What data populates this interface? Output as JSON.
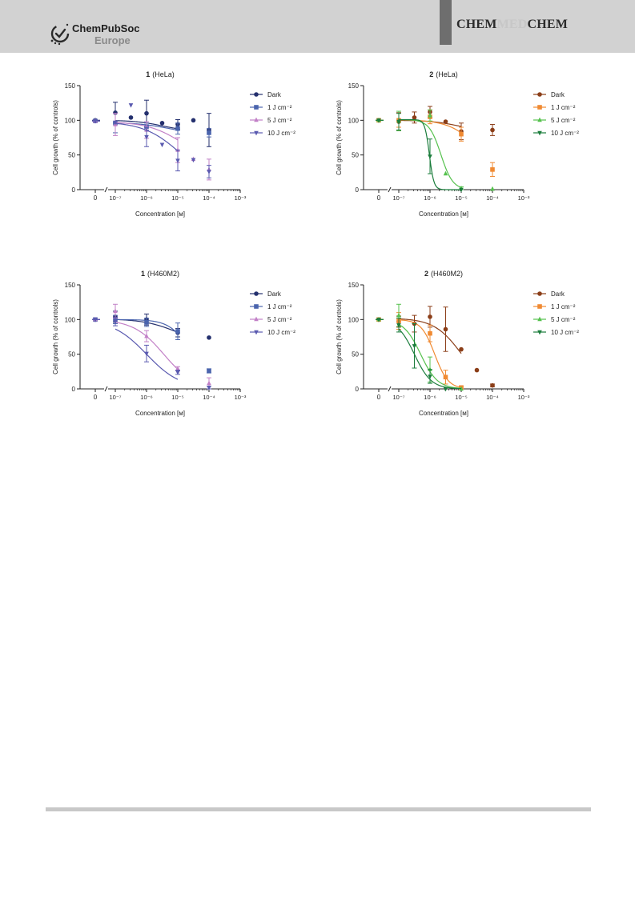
{
  "header": {
    "publisher_line1": "ChemPubSoc",
    "publisher_line2": "Europe",
    "journal_part1": "CHEM",
    "journal_part2": "MED",
    "journal_part3": "CHEM",
    "background": "#d2d2d2"
  },
  "chart_data": [
    {
      "type": "line",
      "compound": "1",
      "cell_line": "(HeLa)",
      "xlabel": "Concentration [м]",
      "ylabel": "Cell growth (% of controls)",
      "x_scale": "log",
      "xlim": [
        1e-07,
        0.001
      ],
      "x_zero_label": "0",
      "x_ticks": [
        "10⁻⁷",
        "10⁻⁶",
        "10⁻⁵",
        "10⁻⁴",
        "10⁻³"
      ],
      "ylim": [
        0,
        150
      ],
      "y_ticks": [
        0,
        50,
        100,
        150
      ],
      "grid": false,
      "legend": "right",
      "series": [
        {
          "name": "Dark",
          "color": "#24306e",
          "marker": "circle",
          "zero": {
            "y": 100,
            "err": 1
          },
          "points": [
            {
              "x": 1e-07,
              "y": 111,
              "err": 15
            },
            {
              "x": 3.16e-07,
              "y": 104,
              "err": 0
            },
            {
              "x": 1e-06,
              "y": 110,
              "err": 19
            },
            {
              "x": 3.16e-06,
              "y": 96,
              "err": 0
            },
            {
              "x": 1e-05,
              "y": 94,
              "err": 7
            },
            {
              "x": 3.16e-05,
              "y": 100,
              "err": 0
            },
            {
              "x": 0.0001,
              "y": 86,
              "err": 24
            }
          ],
          "fit": {
            "top": 100,
            "bottom": 84,
            "logEC50": -5.5,
            "slope": 1
          }
        },
        {
          "name": "1 J cm⁻²",
          "color": "#4a64ad",
          "marker": "square",
          "zero": {
            "y": 99,
            "err": 1
          },
          "points": [
            {
              "x": 1e-07,
              "y": 96,
              "err": 14
            },
            {
              "x": 1e-06,
              "y": 91,
              "err": 5
            },
            {
              "x": 1e-05,
              "y": 88,
              "err": 8
            },
            {
              "x": 0.0001,
              "y": 82,
              "err": 6
            }
          ],
          "fit": {
            "top": 97,
            "bottom": 78,
            "logEC50": -5.2,
            "slope": 0.8
          }
        },
        {
          "name": "5 J cm⁻²",
          "color": "#c280c7",
          "marker": "triangle-up",
          "zero": {
            "y": 99,
            "err": 1
          },
          "points": [
            {
              "x": 1e-07,
              "y": 94,
              "err": 16
            },
            {
              "x": 1e-06,
              "y": 86,
              "err": 12
            },
            {
              "x": 1e-05,
              "y": 57,
              "err": 18
            },
            {
              "x": 3.16e-05,
              "y": 44,
              "err": 0
            },
            {
              "x": 0.0001,
              "y": 29,
              "err": 15
            }
          ],
          "fit": {
            "top": 98,
            "bottom": 40,
            "logEC50": -4.9,
            "slope": 0.8
          }
        },
        {
          "name": "10 J cm⁻²",
          "color": "#5a5ab0",
          "marker": "triangle-down",
          "zero": {
            "y": 99,
            "err": 1
          },
          "points": [
            {
              "x": 1e-07,
              "y": 97,
              "err": 0
            },
            {
              "x": 3.16e-07,
              "y": 122,
              "err": 0
            },
            {
              "x": 1e-06,
              "y": 76,
              "err": 14
            },
            {
              "x": 3.16e-06,
              "y": 65,
              "err": 0
            },
            {
              "x": 1e-05,
              "y": 42,
              "err": 15
            },
            {
              "x": 3.16e-05,
              "y": 43,
              "err": 0
            },
            {
              "x": 0.0001,
              "y": 26,
              "err": 9
            }
          ],
          "fit": {
            "top": 98,
            "bottom": 10,
            "logEC50": -4.95,
            "slope": 0.75
          }
        }
      ]
    },
    {
      "type": "line",
      "compound": "2",
      "cell_line": "(HeLa)",
      "xlabel": "Concentration [м]",
      "ylabel": "Cell growth (% of controls)",
      "x_scale": "log",
      "xlim": [
        1e-07,
        0.001
      ],
      "x_zero_label": "0",
      "x_ticks": [
        "10⁻⁷",
        "10⁻⁶",
        "10⁻⁵",
        "10⁻⁴",
        "10⁻³"
      ],
      "ylim": [
        0,
        150
      ],
      "y_ticks": [
        0,
        50,
        100,
        150
      ],
      "grid": false,
      "legend": "right",
      "series": [
        {
          "name": "Dark",
          "color": "#8b3e18",
          "marker": "circle",
          "zero": {
            "y": 100,
            "err": 1
          },
          "points": [
            {
              "x": 1e-07,
              "y": 98,
              "err": 13
            },
            {
              "x": 3.16e-07,
              "y": 104,
              "err": 8
            },
            {
              "x": 1e-06,
              "y": 112,
              "err": 8
            },
            {
              "x": 3.16e-06,
              "y": 98,
              "err": 0
            },
            {
              "x": 1e-05,
              "y": 84,
              "err": 12
            },
            {
              "x": 0.0001,
              "y": 86,
              "err": 8
            }
          ],
          "fit": {
            "top": 100,
            "bottom": 84,
            "logEC50": -5.1,
            "slope": 1
          }
        },
        {
          "name": "1 J cm⁻²",
          "color": "#f08a32",
          "marker": "square",
          "zero": {
            "y": 100,
            "err": 1
          },
          "points": [
            {
              "x": 1e-07,
              "y": 100,
              "err": 10
            },
            {
              "x": 1e-06,
              "y": 105,
              "err": 10
            },
            {
              "x": 1e-05,
              "y": 80,
              "err": 10
            },
            {
              "x": 0.0001,
              "y": 29,
              "err": 10
            }
          ],
          "fit": {
            "top": 101,
            "bottom": 0,
            "logEC50": -4.3,
            "slope": 0.9
          }
        },
        {
          "name": "5 J cm⁻²",
          "color": "#55c14d",
          "marker": "triangle-up",
          "zero": {
            "y": 100,
            "err": 1
          },
          "points": [
            {
              "x": 1e-07,
              "y": 99,
              "err": 14
            },
            {
              "x": 1e-06,
              "y": 107,
              "err": 8
            },
            {
              "x": 3.16e-06,
              "y": 23,
              "err": 0
            },
            {
              "x": 1e-05,
              "y": 2,
              "err": 2
            },
            {
              "x": 0.0001,
              "y": 1,
              "err": 0
            }
          ],
          "fit": {
            "top": 101,
            "bottom": 0,
            "logEC50": -5.65,
            "slope": 2.3
          }
        },
        {
          "name": "10 J cm⁻²",
          "color": "#1b7d3c",
          "marker": "triangle-down",
          "zero": {
            "y": 100,
            "err": 1
          },
          "points": [
            {
              "x": 1e-07,
              "y": 98,
              "err": 12
            },
            {
              "x": 1e-06,
              "y": 48,
              "err": 25
            },
            {
              "x": 1e-05,
              "y": 0,
              "err": 0
            }
          ],
          "fit": {
            "top": 101,
            "bottom": 0,
            "logEC50": -6.02,
            "slope": 6
          }
        }
      ]
    },
    {
      "type": "line",
      "compound": "1",
      "cell_line": "(H460M2)",
      "xlabel": "Concentration [м]",
      "ylabel": "Cell growth (% of controls)",
      "x_scale": "log",
      "xlim": [
        1e-07,
        0.001
      ],
      "x_zero_label": "0",
      "x_ticks": [
        "10⁻⁷",
        "10⁻⁶",
        "10⁻⁵",
        "10⁻⁴",
        "10⁻³"
      ],
      "ylim": [
        0,
        150
      ],
      "y_ticks": [
        0,
        50,
        100,
        150
      ],
      "grid": false,
      "legend": "right",
      "series": [
        {
          "name": "Dark",
          "color": "#24306e",
          "marker": "circle",
          "zero": {
            "y": 100,
            "err": 1
          },
          "points": [
            {
              "x": 1e-07,
              "y": 104,
              "err": 8
            },
            {
              "x": 1e-06,
              "y": 100,
              "err": 8
            },
            {
              "x": 1e-05,
              "y": 81,
              "err": 6
            },
            {
              "x": 0.0001,
              "y": 74,
              "err": 0
            }
          ],
          "fit": {
            "top": 101,
            "bottom": 62,
            "logEC50": -5.0,
            "slope": 0.8
          }
        },
        {
          "name": "1 J cm⁻²",
          "color": "#4a64ad",
          "marker": "square",
          "zero": {
            "y": 100,
            "err": 1
          },
          "points": [
            {
              "x": 1e-07,
              "y": 100,
              "err": 6
            },
            {
              "x": 1e-06,
              "y": 96,
              "err": 6
            },
            {
              "x": 1e-05,
              "y": 83,
              "err": 12
            },
            {
              "x": 0.0001,
              "y": 26,
              "err": 3
            }
          ],
          "fit": {
            "top": 100,
            "bottom": 0,
            "logEC50": -4.55,
            "slope": 1.3
          }
        },
        {
          "name": "5 J cm⁻²",
          "color": "#c280c7",
          "marker": "triangle-up",
          "zero": {
            "y": 100,
            "err": 1
          },
          "points": [
            {
              "x": 1e-07,
              "y": 112,
              "err": 10
            },
            {
              "x": 1e-06,
              "y": 76,
              "err": 8
            },
            {
              "x": 1e-05,
              "y": 29,
              "err": 3
            },
            {
              "x": 0.0001,
              "y": 8,
              "err": 8
            }
          ],
          "fit": {
            "top": 100,
            "bottom": 0,
            "logEC50": -5.45,
            "slope": 0.9
          }
        },
        {
          "name": "10 J cm⁻²",
          "color": "#5a5ab0",
          "marker": "triangle-down",
          "zero": {
            "y": 100,
            "err": 1
          },
          "points": [
            {
              "x": 1e-07,
              "y": 97,
              "err": 6
            },
            {
              "x": 1e-06,
              "y": 51,
              "err": 12
            },
            {
              "x": 1e-05,
              "y": 24,
              "err": 3
            },
            {
              "x": 0.0001,
              "y": 2,
              "err": 2
            }
          ],
          "fit": {
            "top": 100,
            "bottom": 0,
            "logEC50": -6.0,
            "slope": 0.8
          }
        }
      ]
    },
    {
      "type": "line",
      "compound": "2",
      "cell_line": "(H460M2)",
      "xlabel": "Concentration [м]",
      "ylabel": "Cell growth (% of controls)",
      "x_scale": "log",
      "xlim": [
        1e-07,
        0.001
      ],
      "x_zero_label": "0",
      "x_ticks": [
        "10⁻⁷",
        "10⁻⁶",
        "10⁻⁵",
        "10⁻⁴",
        "10⁻³"
      ],
      "ylim": [
        0,
        150
      ],
      "y_ticks": [
        0,
        50,
        100,
        150
      ],
      "grid": false,
      "legend": "right",
      "series": [
        {
          "name": "Dark",
          "color": "#8b3e18",
          "marker": "circle",
          "zero": {
            "y": 100,
            "err": 1
          },
          "points": [
            {
              "x": 1e-07,
              "y": 97,
              "err": 8
            },
            {
              "x": 3.16e-07,
              "y": 94,
              "err": 12
            },
            {
              "x": 1e-06,
              "y": 104,
              "err": 15
            },
            {
              "x": 3.16e-06,
              "y": 86,
              "err": 32
            },
            {
              "x": 1e-05,
              "y": 57,
              "err": 0
            },
            {
              "x": 3.16e-05,
              "y": 27,
              "err": 0
            },
            {
              "x": 0.0001,
              "y": 5,
              "err": 2
            }
          ],
          "fit": {
            "top": 102,
            "bottom": 0,
            "logEC50": -5.0,
            "slope": 1.0
          }
        },
        {
          "name": "1 J cm⁻²",
          "color": "#f08a32",
          "marker": "square",
          "zero": {
            "y": 100,
            "err": 1
          },
          "points": [
            {
              "x": 1e-07,
              "y": 98,
              "err": 12
            },
            {
              "x": 1e-06,
              "y": 80,
              "err": 12
            },
            {
              "x": 3.16e-06,
              "y": 17,
              "err": 10
            },
            {
              "x": 1e-05,
              "y": 2,
              "err": 2
            }
          ],
          "fit": {
            "top": 100,
            "bottom": 0,
            "logEC50": -5.85,
            "slope": 2.0
          }
        },
        {
          "name": "5 J cm⁻²",
          "color": "#55c14d",
          "marker": "triangle-up",
          "zero": {
            "y": 100,
            "err": 1
          },
          "points": [
            {
              "x": 1e-07,
              "y": 106,
              "err": 16
            },
            {
              "x": 1e-06,
              "y": 28,
              "err": 18
            },
            {
              "x": 1e-05,
              "y": 0,
              "err": 0
            }
          ],
          "fit": {
            "top": 100,
            "bottom": 0,
            "logEC50": -6.3,
            "slope": 1.6
          }
        },
        {
          "name": "10 J cm⁻²",
          "color": "#1b7d3c",
          "marker": "triangle-down",
          "zero": {
            "y": 100,
            "err": 1
          },
          "points": [
            {
              "x": 1e-07,
              "y": 92,
              "err": 10
            },
            {
              "x": 3.16e-07,
              "y": 62,
              "err": 32
            },
            {
              "x": 1e-06,
              "y": 18,
              "err": 10
            },
            {
              "x": 3.16e-06,
              "y": 0,
              "err": 0
            }
          ],
          "fit": {
            "top": 100,
            "bottom": 0,
            "logEC50": -6.5,
            "slope": 1.6
          }
        }
      ]
    }
  ]
}
